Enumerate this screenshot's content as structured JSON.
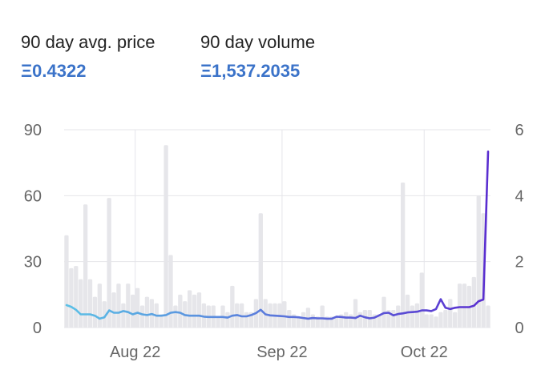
{
  "stats": {
    "price": {
      "label": "90 day avg. price",
      "value": "Ξ0.4322"
    },
    "volume": {
      "label": "90 day volume",
      "value": "Ξ1,537.2035"
    }
  },
  "colors": {
    "value_text": "#3b73c9",
    "bars": "#e6e6ea",
    "gridline": "#e5e5ea",
    "line_start": "#5bc0e6",
    "line_end": "#5a2ed0",
    "tick_text": "#666666"
  },
  "chart_data": {
    "type": "bar+line",
    "title": "",
    "xlabel": "",
    "ylabel": "",
    "x_axis": {
      "tick_labels": [
        "Aug 22",
        "Sep 22",
        "Oct 22"
      ],
      "tick_days": [
        15,
        46,
        76
      ],
      "day_range": [
        0,
        90
      ]
    },
    "y_left": {
      "label": "",
      "ticks": [
        0,
        30,
        60,
        90
      ],
      "ylim": [
        0,
        90
      ]
    },
    "y_right": {
      "label": "",
      "ticks": [
        0,
        2,
        4,
        6
      ],
      "ylim": [
        0,
        6
      ]
    },
    "grid": true,
    "series": [
      {
        "kind": "bar",
        "axis": "left",
        "color": "#e6e6ea",
        "x": [
          0,
          1,
          2,
          3,
          4,
          5,
          6,
          7,
          8,
          9,
          10,
          11,
          12,
          13,
          14,
          15,
          16,
          17,
          18,
          19,
          20,
          21,
          22,
          23,
          24,
          25,
          26,
          27,
          28,
          29,
          30,
          31,
          32,
          33,
          34,
          35,
          36,
          37,
          38,
          39,
          40,
          41,
          42,
          43,
          44,
          45,
          46,
          47,
          48,
          49,
          50,
          51,
          52,
          53,
          54,
          55,
          56,
          57,
          58,
          59,
          60,
          61,
          62,
          63,
          64,
          65,
          66,
          67,
          68,
          69,
          70,
          71,
          72,
          73,
          74,
          75,
          76,
          77,
          78,
          79,
          80,
          81,
          82,
          83,
          84,
          85,
          86,
          87,
          88,
          89
        ],
        "values": [
          42,
          27,
          28,
          22,
          56,
          22,
          14,
          20,
          12,
          59,
          16,
          20,
          11,
          20,
          15,
          18,
          10,
          14,
          13,
          11,
          6,
          83,
          33,
          10,
          15,
          12,
          17,
          15,
          16,
          11,
          10,
          10,
          5,
          10,
          7,
          19,
          11,
          11,
          7,
          7,
          13,
          52,
          13,
          11,
          11,
          11,
          12,
          8,
          6,
          5,
          7,
          9,
          6,
          5,
          10,
          5,
          5,
          5,
          6,
          7,
          6,
          13,
          7,
          8,
          8,
          6,
          6,
          14,
          8,
          8,
          10,
          66,
          15,
          10,
          11,
          25,
          6,
          6,
          5,
          7,
          8,
          13,
          7,
          20,
          20,
          19,
          23,
          60,
          52,
          10
        ]
      },
      {
        "kind": "line",
        "axis": "right",
        "x": [
          0,
          1,
          2,
          3,
          4,
          5,
          6,
          7,
          8,
          9,
          10,
          11,
          12,
          13,
          14,
          15,
          16,
          17,
          18,
          19,
          20,
          21,
          22,
          23,
          24,
          25,
          26,
          27,
          28,
          29,
          30,
          31,
          32,
          33,
          34,
          35,
          36,
          37,
          38,
          39,
          40,
          41,
          42,
          43,
          44,
          45,
          46,
          47,
          48,
          49,
          50,
          51,
          52,
          53,
          54,
          55,
          56,
          57,
          58,
          59,
          60,
          61,
          62,
          63,
          64,
          65,
          66,
          67,
          68,
          69,
          70,
          71,
          72,
          73,
          74,
          75,
          76,
          77,
          78,
          79,
          80,
          81,
          82,
          83,
          84,
          85,
          86,
          87,
          88,
          89
        ],
        "values": [
          0.68,
          0.63,
          0.54,
          0.4,
          0.4,
          0.4,
          0.36,
          0.27,
          0.31,
          0.52,
          0.45,
          0.45,
          0.5,
          0.47,
          0.4,
          0.45,
          0.4,
          0.38,
          0.41,
          0.36,
          0.36,
          0.38,
          0.45,
          0.47,
          0.45,
          0.38,
          0.36,
          0.36,
          0.36,
          0.33,
          0.32,
          0.32,
          0.32,
          0.32,
          0.3,
          0.36,
          0.38,
          0.34,
          0.34,
          0.38,
          0.44,
          0.54,
          0.4,
          0.37,
          0.36,
          0.35,
          0.34,
          0.32,
          0.32,
          0.31,
          0.29,
          0.27,
          0.29,
          0.28,
          0.28,
          0.27,
          0.27,
          0.33,
          0.32,
          0.3,
          0.3,
          0.29,
          0.36,
          0.31,
          0.28,
          0.3,
          0.37,
          0.44,
          0.45,
          0.37,
          0.41,
          0.43,
          0.46,
          0.47,
          0.48,
          0.52,
          0.52,
          0.5,
          0.56,
          0.86,
          0.6,
          0.56,
          0.6,
          0.62,
          0.62,
          0.62,
          0.66,
          0.8,
          0.85,
          5.34
        ]
      }
    ]
  }
}
